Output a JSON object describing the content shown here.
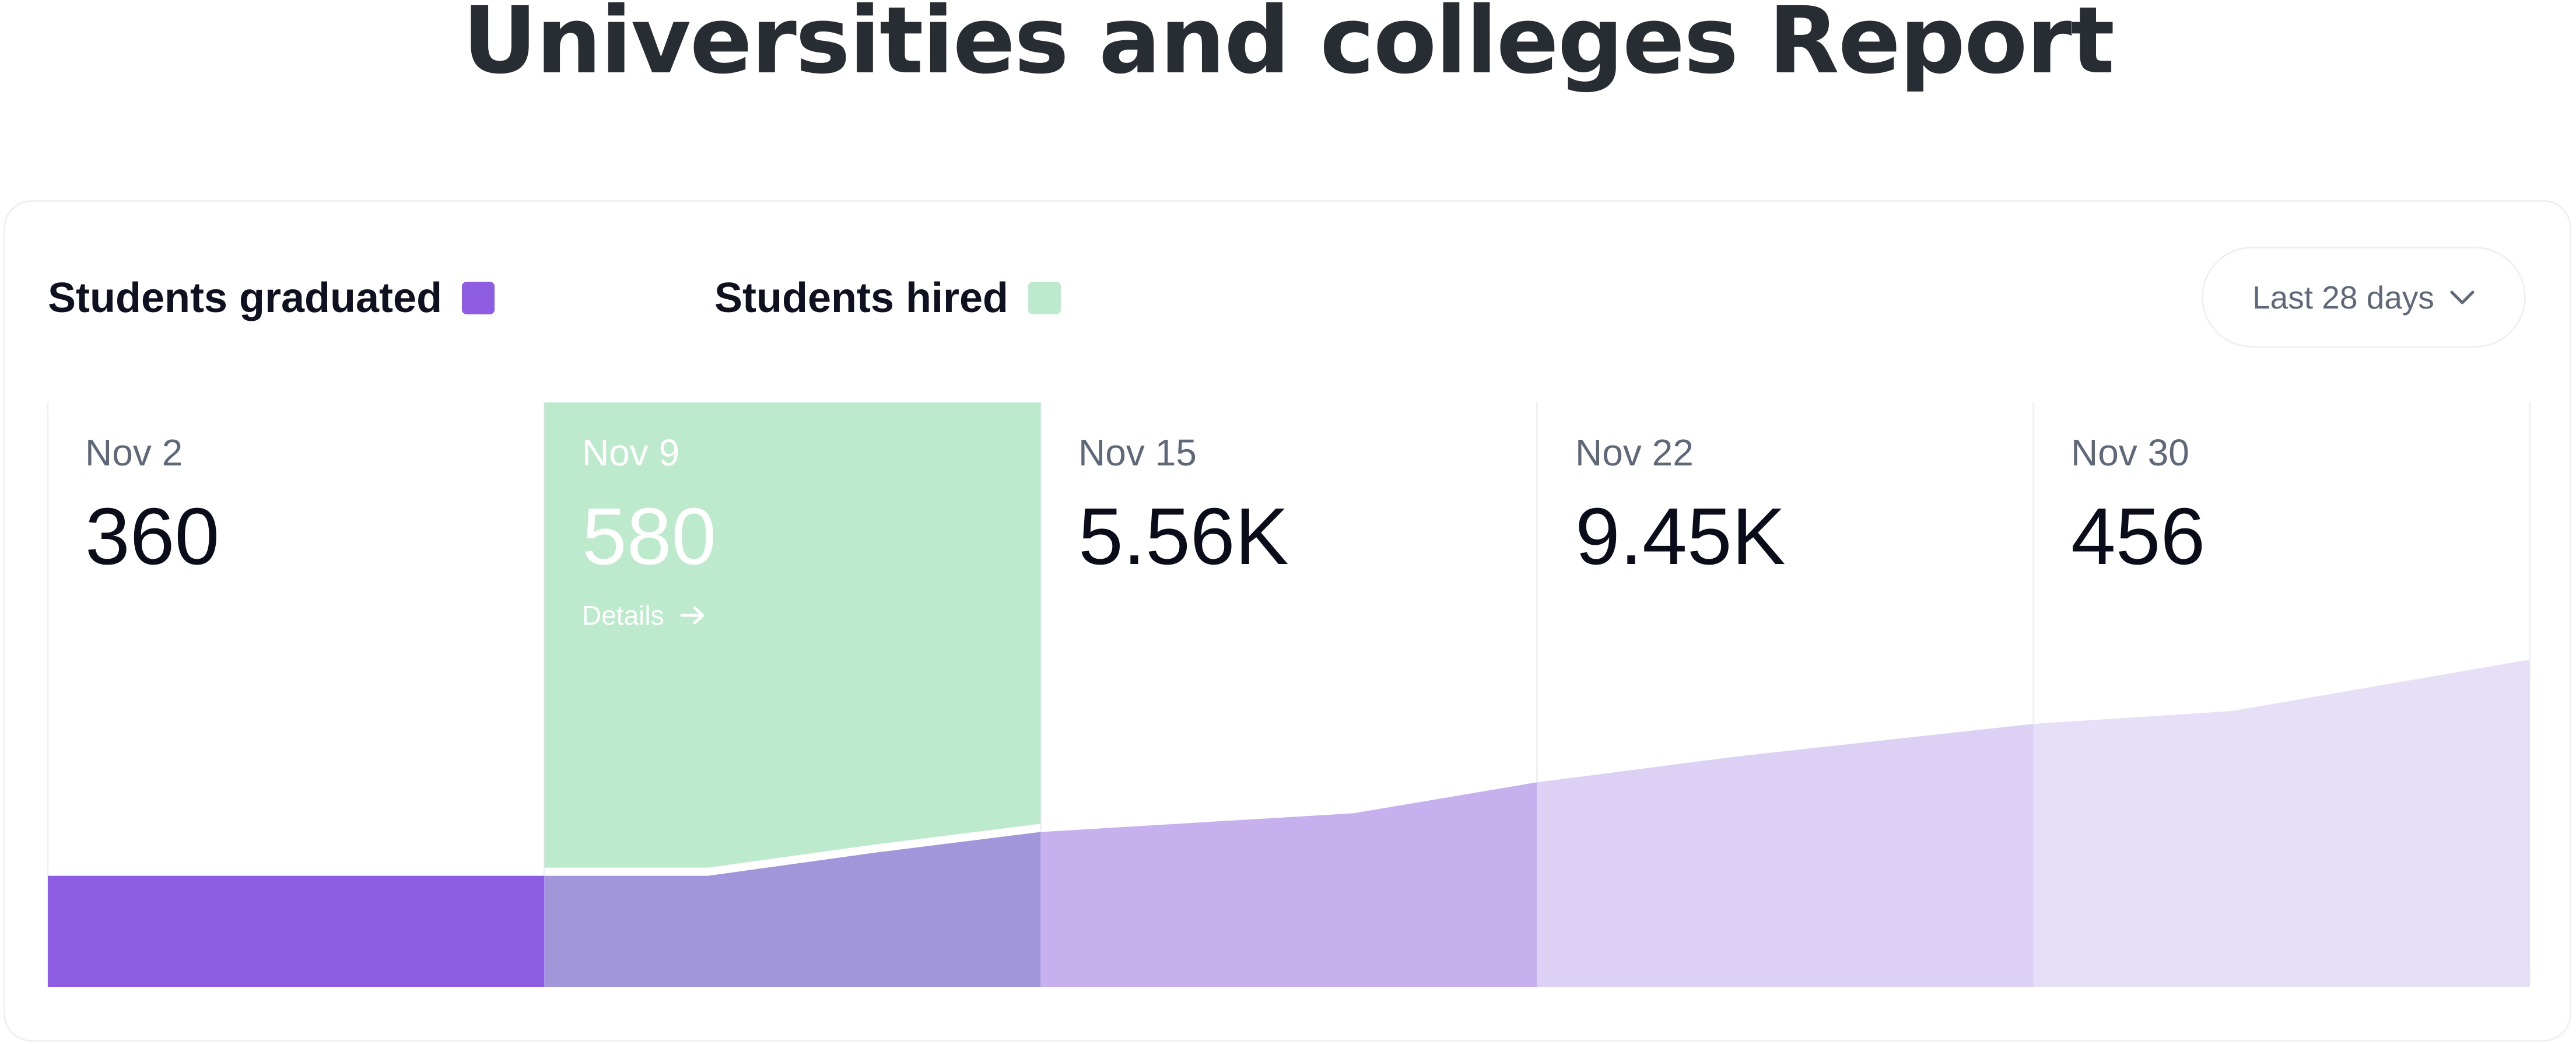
{
  "title": "Universities and colleges Report",
  "range_select": {
    "label": "Last 28 days",
    "icon": "chevron-down-icon"
  },
  "colors": {
    "graduated": "#8e5ce1",
    "hired": "#bde9cd",
    "text": "#0b0c1a",
    "muted": "#5f6878"
  },
  "chart_data": {
    "type": "area",
    "title": "",
    "legend": [
      {
        "name": "Students graduated",
        "color": "#8e5ce1"
      },
      {
        "name": "Students hired",
        "color": "#bde9cd"
      }
    ],
    "columns": [
      {
        "date": "Nov 2",
        "value": "360",
        "active": false
      },
      {
        "date": "Nov 9",
        "value": "580",
        "active": true,
        "link": "Details"
      },
      {
        "date": "Nov 15",
        "value": "5.56K",
        "active": false
      },
      {
        "date": "Nov 22",
        "value": "9.45K",
        "active": false
      },
      {
        "date": "Nov 30",
        "value": "456",
        "active": false
      }
    ],
    "series": [
      {
        "name": "Students graduated",
        "x": [
          0,
          1,
          1.33,
          1.67,
          2,
          2.63,
          3,
          3.41,
          4,
          4.4,
          5
        ],
        "y": [
          190,
          190,
          190,
          230,
          265,
          297,
          350,
          395,
          450,
          472,
          560
        ]
      }
    ],
    "ylim": [
      0,
      1000
    ],
    "grid": true,
    "legend_position": "top-left"
  }
}
